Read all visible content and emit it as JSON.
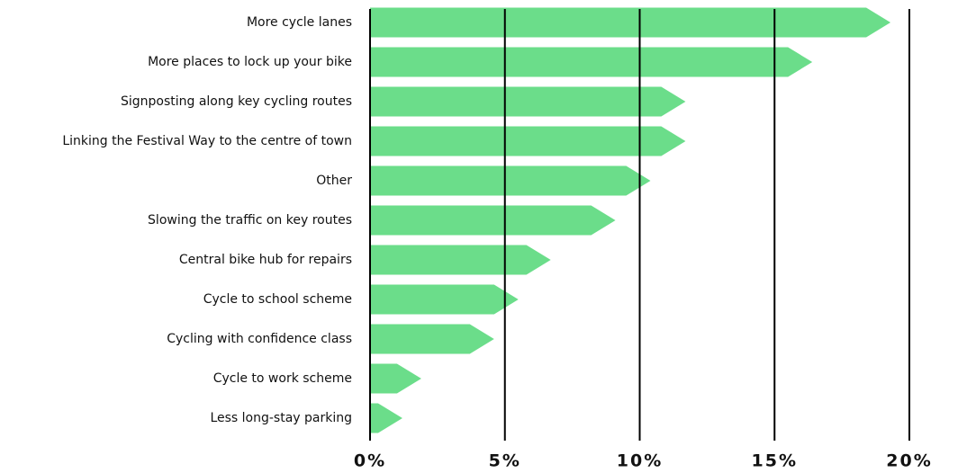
{
  "chart_data": {
    "type": "bar",
    "orientation": "horizontal",
    "categories": [
      "More cycle lanes",
      "More places to lock up your bike",
      "Signposting along key cycling routes",
      "Linking the Festival Way to the centre of town",
      "Other",
      "Slowing the traffic on key routes",
      "Central bike hub for repairs",
      "Cycle to school scheme",
      "Cycling with confidence class",
      "Cycle to work scheme",
      "Less long-stay parking"
    ],
    "values": [
      19.3,
      16.4,
      11.7,
      11.7,
      10.4,
      9.1,
      6.7,
      5.5,
      4.6,
      1.9,
      1.2
    ],
    "color": "#6bdd8a",
    "xlim": [
      0,
      20
    ],
    "xticks": [
      {
        "value": 0,
        "label": "0%"
      },
      {
        "value": 5,
        "label": "5%"
      },
      {
        "value": 10,
        "label": "10%"
      },
      {
        "value": 15,
        "label": "15%"
      },
      {
        "value": 20,
        "label": "20%"
      }
    ],
    "grid": true
  }
}
